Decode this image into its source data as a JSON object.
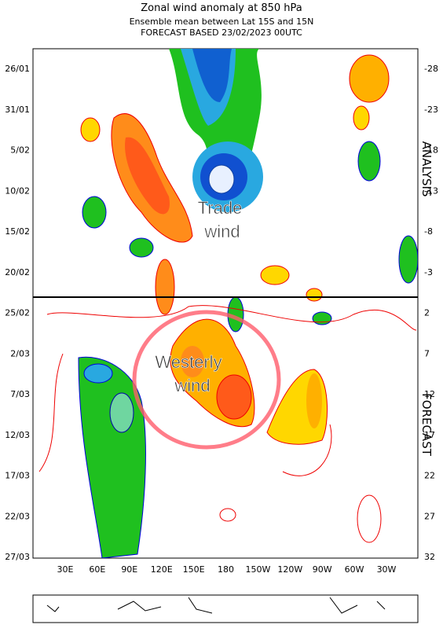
{
  "header": {
    "title": "Zonal wind anomaly at 850 hPa",
    "subtitle": "Ensemble mean between  Lat 15S and 15N",
    "forecast_line": "FORECAST  BASED 23/02/2023 00UTC"
  },
  "left_axis": {
    "labels": [
      "26/01",
      "31/01",
      "5/02",
      "10/02",
      "15/02",
      "20/02",
      "25/02",
      "2/03",
      "7/03",
      "12/03",
      "17/03",
      "22/03",
      "27/03"
    ]
  },
  "right_axis": {
    "labels": [
      -28,
      -23,
      -18,
      -13,
      -8,
      -3,
      2,
      7,
      12,
      17,
      22,
      27,
      32
    ]
  },
  "bottom_axis": {
    "labels": [
      "30E",
      "60E",
      "90E",
      "120E",
      "150E",
      "180",
      "150W",
      "120W",
      "90W",
      "60W",
      "30W"
    ]
  },
  "side_labels": {
    "top": "ANALYSIS",
    "bottom": "FORECAST"
  },
  "annotations": {
    "trade": "Trade wind",
    "westerly": "Westerly wind"
  }
}
